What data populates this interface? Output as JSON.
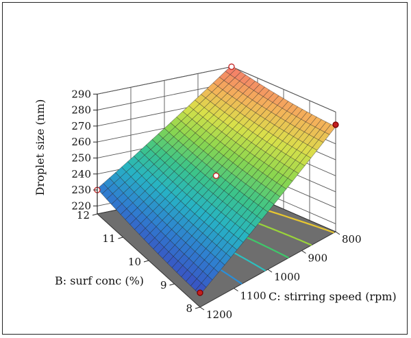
{
  "chart_data": {
    "type": "surface3d",
    "title": "",
    "z_axis": {
      "label": "Droplet size (nm)",
      "ticks": [
        220,
        230,
        240,
        250,
        260,
        270,
        280,
        290
      ],
      "range": [
        215,
        290
      ]
    },
    "b_axis": {
      "label": "B: surf conc (%)",
      "ticks": [
        8,
        9,
        10,
        11,
        12
      ],
      "range": [
        8,
        12
      ]
    },
    "c_axis": {
      "label": "C: stirring speed (rpm)",
      "ticks": [
        800,
        900,
        1000,
        1100,
        1200
      ],
      "range": [
        800,
        1200
      ]
    },
    "grid": true,
    "colormap": [
      "#3b4cc0",
      "#2f7fd0",
      "#27b3c5",
      "#3cc48a",
      "#8bd64f",
      "#d9e04a",
      "#f4b15a",
      "#f47a6a"
    ],
    "surface_corners": [
      {
        "B": 12,
        "C": 1200,
        "droplet_size": 230
      },
      {
        "B": 12,
        "C": 800,
        "droplet_size": 290
      },
      {
        "B": 8,
        "C": 800,
        "droplet_size": 280
      },
      {
        "B": 8,
        "C": 1200,
        "droplet_size": 222
      }
    ],
    "design_points": [
      {
        "B": 12,
        "C": 1200,
        "droplet_size": 230
      },
      {
        "B": 12,
        "C": 800,
        "droplet_size": 290
      },
      {
        "B": 8,
        "C": 800,
        "droplet_size": 282
      },
      {
        "B": 8,
        "C": 1200,
        "droplet_size": 224
      },
      {
        "B": 10,
        "C": 1000,
        "droplet_size": 252
      }
    ],
    "floor_contours": [
      {
        "level": 240,
        "color": "#2a8fd8"
      },
      {
        "level": 250,
        "color": "#2cc0c0"
      },
      {
        "level": 260,
        "color": "#3fc86a"
      },
      {
        "level": 270,
        "color": "#9ad43a"
      },
      {
        "level": 280,
        "color": "#e8c830"
      }
    ]
  }
}
